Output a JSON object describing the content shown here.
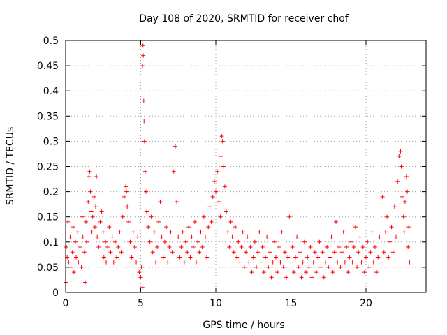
{
  "chart_data": {
    "type": "scatter",
    "title": "Day 108 of 2020, SRMTID for receiver chof",
    "xlabel": "GPS time / hours",
    "ylabel": "SRMTID / TECUs",
    "xlim": [
      0,
      24
    ],
    "ylim": [
      0,
      0.5
    ],
    "xticks": [
      0,
      5,
      10,
      15,
      20
    ],
    "yticks": [
      0,
      0.05,
      0.1,
      0.15,
      0.2,
      0.25,
      0.3,
      0.35,
      0.4,
      0.45,
      0.5
    ],
    "xtick_labels": [
      "0",
      "5",
      "10",
      "15",
      "20"
    ],
    "ytick_labels": [
      "0",
      "0.05",
      "0.1",
      "0.15",
      "0.2",
      "0.25",
      "0.3",
      "0.35",
      "0.4",
      "0.45",
      "0.5"
    ],
    "grid": true,
    "marker": "+",
    "color": "#ff0000",
    "series": [
      {
        "points": [
          [
            0.0,
            0.02
          ],
          [
            0.05,
            0.09
          ],
          [
            0.1,
            0.07
          ],
          [
            0.15,
            0.14
          ],
          [
            0.2,
            0.06
          ],
          [
            0.3,
            0.11
          ],
          [
            0.35,
            0.05
          ],
          [
            0.45,
            0.08
          ],
          [
            0.5,
            0.13
          ],
          [
            0.55,
            0.04
          ],
          [
            0.65,
            0.1
          ],
          [
            0.7,
            0.07
          ],
          [
            0.8,
            0.12
          ],
          [
            0.85,
            0.06
          ],
          [
            0.95,
            0.09
          ],
          [
            1.05,
            0.05
          ],
          [
            1.1,
            0.15
          ],
          [
            1.15,
            0.11
          ],
          [
            1.25,
            0.08
          ],
          [
            1.3,
            0.02
          ],
          [
            1.35,
            0.14
          ],
          [
            1.4,
            0.1
          ],
          [
            1.5,
            0.18
          ],
          [
            1.55,
            0.23
          ],
          [
            1.6,
            0.24
          ],
          [
            1.65,
            0.2
          ],
          [
            1.7,
            0.16
          ],
          [
            1.75,
            0.12
          ],
          [
            1.8,
            0.15
          ],
          [
            1.9,
            0.19
          ],
          [
            1.95,
            0.13
          ],
          [
            2.0,
            0.17
          ],
          [
            2.05,
            0.23
          ],
          [
            2.1,
            0.11
          ],
          [
            2.2,
            0.09
          ],
          [
            2.3,
            0.14
          ],
          [
            2.4,
            0.16
          ],
          [
            2.5,
            0.12
          ],
          [
            2.55,
            0.07
          ],
          [
            2.65,
            0.1
          ],
          [
            2.7,
            0.06
          ],
          [
            2.8,
            0.09
          ],
          [
            2.9,
            0.13
          ],
          [
            3.0,
            0.08
          ],
          [
            3.1,
            0.11
          ],
          [
            3.2,
            0.06
          ],
          [
            3.3,
            0.1
          ],
          [
            3.4,
            0.07
          ],
          [
            3.5,
            0.09
          ],
          [
            3.6,
            0.12
          ],
          [
            3.7,
            0.08
          ],
          [
            3.8,
            0.15
          ],
          [
            3.9,
            0.19
          ],
          [
            4.0,
            0.21
          ],
          [
            4.05,
            0.2
          ],
          [
            4.1,
            0.17
          ],
          [
            4.2,
            0.14
          ],
          [
            4.3,
            0.1
          ],
          [
            4.4,
            0.07
          ],
          [
            4.5,
            0.12
          ],
          [
            4.6,
            0.09
          ],
          [
            4.7,
            0.06
          ],
          [
            4.8,
            0.11
          ],
          [
            4.9,
            0.04
          ],
          [
            5.0,
            0.03
          ],
          [
            5.05,
            0.05
          ],
          [
            5.1,
            0.01
          ],
          [
            5.12,
            0.45
          ],
          [
            5.15,
            0.49
          ],
          [
            5.17,
            0.47
          ],
          [
            5.2,
            0.38
          ],
          [
            5.22,
            0.34
          ],
          [
            5.25,
            0.3
          ],
          [
            5.3,
            0.24
          ],
          [
            5.35,
            0.2
          ],
          [
            5.4,
            0.16
          ],
          [
            5.5,
            0.13
          ],
          [
            5.6,
            0.1
          ],
          [
            5.7,
            0.15
          ],
          [
            5.8,
            0.08
          ],
          [
            5.9,
            0.12
          ],
          [
            6.0,
            0.06
          ],
          [
            6.1,
            0.09
          ],
          [
            6.2,
            0.14
          ],
          [
            6.3,
            0.18
          ],
          [
            6.4,
            0.11
          ],
          [
            6.5,
            0.07
          ],
          [
            6.6,
            0.1
          ],
          [
            6.7,
            0.13
          ],
          [
            6.8,
            0.06
          ],
          [
            6.9,
            0.09
          ],
          [
            7.0,
            0.12
          ],
          [
            7.1,
            0.08
          ],
          [
            7.2,
            0.24
          ],
          [
            7.3,
            0.29
          ],
          [
            7.4,
            0.18
          ],
          [
            7.5,
            0.11
          ],
          [
            7.6,
            0.07
          ],
          [
            7.7,
            0.09
          ],
          [
            7.8,
            0.12
          ],
          [
            7.9,
            0.06
          ],
          [
            8.0,
            0.1
          ],
          [
            8.1,
            0.08
          ],
          [
            8.2,
            0.13
          ],
          [
            8.3,
            0.07
          ],
          [
            8.4,
            0.11
          ],
          [
            8.5,
            0.09
          ],
          [
            8.6,
            0.14
          ],
          [
            8.7,
            0.06
          ],
          [
            8.8,
            0.1
          ],
          [
            8.9,
            0.08
          ],
          [
            9.0,
            0.12
          ],
          [
            9.1,
            0.09
          ],
          [
            9.2,
            0.15
          ],
          [
            9.3,
            0.11
          ],
          [
            9.4,
            0.07
          ],
          [
            9.5,
            0.13
          ],
          [
            9.6,
            0.17
          ],
          [
            9.7,
            0.14
          ],
          [
            9.8,
            0.19
          ],
          [
            9.9,
            0.22
          ],
          [
            10.0,
            0.2
          ],
          [
            10.1,
            0.24
          ],
          [
            10.2,
            0.18
          ],
          [
            10.3,
            0.15
          ],
          [
            10.35,
            0.27
          ],
          [
            10.4,
            0.31
          ],
          [
            10.45,
            0.3
          ],
          [
            10.5,
            0.25
          ],
          [
            10.6,
            0.21
          ],
          [
            10.7,
            0.16
          ],
          [
            10.8,
            0.12
          ],
          [
            10.9,
            0.09
          ],
          [
            11.0,
            0.14
          ],
          [
            11.1,
            0.11
          ],
          [
            11.2,
            0.08
          ],
          [
            11.3,
            0.13
          ],
          [
            11.4,
            0.07
          ],
          [
            11.5,
            0.1
          ],
          [
            11.6,
            0.06
          ],
          [
            11.7,
            0.09
          ],
          [
            11.8,
            0.12
          ],
          [
            11.9,
            0.05
          ],
          [
            12.0,
            0.08
          ],
          [
            12.1,
            0.11
          ],
          [
            12.2,
            0.06
          ],
          [
            12.3,
            0.09
          ],
          [
            12.4,
            0.04
          ],
          [
            12.5,
            0.07
          ],
          [
            12.6,
            0.1
          ],
          [
            12.7,
            0.05
          ],
          [
            12.8,
            0.08
          ],
          [
            12.9,
            0.12
          ],
          [
            13.0,
            0.06
          ],
          [
            13.1,
            0.09
          ],
          [
            13.2,
            0.04
          ],
          [
            13.3,
            0.07
          ],
          [
            13.4,
            0.11
          ],
          [
            13.5,
            0.05
          ],
          [
            13.6,
            0.08
          ],
          [
            13.7,
            0.03
          ],
          [
            13.8,
            0.06
          ],
          [
            13.9,
            0.1
          ],
          [
            14.0,
            0.07
          ],
          [
            14.1,
            0.04
          ],
          [
            14.2,
            0.09
          ],
          [
            14.3,
            0.06
          ],
          [
            14.4,
            0.12
          ],
          [
            14.5,
            0.05
          ],
          [
            14.6,
            0.08
          ],
          [
            14.7,
            0.03
          ],
          [
            14.8,
            0.07
          ],
          [
            14.9,
            0.15
          ],
          [
            15.0,
            0.06
          ],
          [
            15.1,
            0.09
          ],
          [
            15.2,
            0.04
          ],
          [
            15.3,
            0.07
          ],
          [
            15.4,
            0.11
          ],
          [
            15.5,
            0.05
          ],
          [
            15.6,
            0.08
          ],
          [
            15.7,
            0.03
          ],
          [
            15.8,
            0.06
          ],
          [
            15.9,
            0.1
          ],
          [
            16.0,
            0.04
          ],
          [
            16.1,
            0.07
          ],
          [
            16.2,
            0.05
          ],
          [
            16.3,
            0.09
          ],
          [
            16.4,
            0.03
          ],
          [
            16.5,
            0.06
          ],
          [
            16.6,
            0.08
          ],
          [
            16.7,
            0.04
          ],
          [
            16.8,
            0.07
          ],
          [
            16.9,
            0.1
          ],
          [
            17.0,
            0.05
          ],
          [
            17.1,
            0.08
          ],
          [
            17.2,
            0.03
          ],
          [
            17.3,
            0.06
          ],
          [
            17.4,
            0.09
          ],
          [
            17.5,
            0.05
          ],
          [
            17.6,
            0.07
          ],
          [
            17.7,
            0.11
          ],
          [
            17.8,
            0.04
          ],
          [
            17.9,
            0.08
          ],
          [
            18.0,
            0.14
          ],
          [
            18.1,
            0.06
          ],
          [
            18.2,
            0.09
          ],
          [
            18.3,
            0.05
          ],
          [
            18.4,
            0.08
          ],
          [
            18.5,
            0.12
          ],
          [
            18.6,
            0.06
          ],
          [
            18.7,
            0.09
          ],
          [
            18.8,
            0.04
          ],
          [
            18.9,
            0.07
          ],
          [
            19.0,
            0.1
          ],
          [
            19.1,
            0.06
          ],
          [
            19.2,
            0.09
          ],
          [
            19.3,
            0.13
          ],
          [
            19.4,
            0.05
          ],
          [
            19.5,
            0.08
          ],
          [
            19.6,
            0.11
          ],
          [
            19.7,
            0.06
          ],
          [
            19.8,
            0.09
          ],
          [
            19.9,
            0.04
          ],
          [
            20.0,
            0.07
          ],
          [
            20.1,
            0.1
          ],
          [
            20.2,
            0.05
          ],
          [
            20.3,
            0.08
          ],
          [
            20.4,
            0.12
          ],
          [
            20.5,
            0.06
          ],
          [
            20.6,
            0.09
          ],
          [
            20.7,
            0.04
          ],
          [
            20.8,
            0.07
          ],
          [
            20.9,
            0.11
          ],
          [
            21.0,
            0.06
          ],
          [
            21.1,
            0.19
          ],
          [
            21.2,
            0.08
          ],
          [
            21.3,
            0.12
          ],
          [
            21.4,
            0.15
          ],
          [
            21.5,
            0.07
          ],
          [
            21.6,
            0.1
          ],
          [
            21.7,
            0.13
          ],
          [
            21.8,
            0.08
          ],
          [
            21.9,
            0.17
          ],
          [
            22.0,
            0.11
          ],
          [
            22.1,
            0.22
          ],
          [
            22.2,
            0.27
          ],
          [
            22.3,
            0.28
          ],
          [
            22.35,
            0.25
          ],
          [
            22.4,
            0.19
          ],
          [
            22.5,
            0.15
          ],
          [
            22.55,
            0.12
          ],
          [
            22.6,
            0.18
          ],
          [
            22.7,
            0.23
          ],
          [
            22.75,
            0.2
          ],
          [
            22.8,
            0.09
          ],
          [
            22.85,
            0.13
          ],
          [
            22.9,
            0.06
          ]
        ]
      }
    ]
  }
}
